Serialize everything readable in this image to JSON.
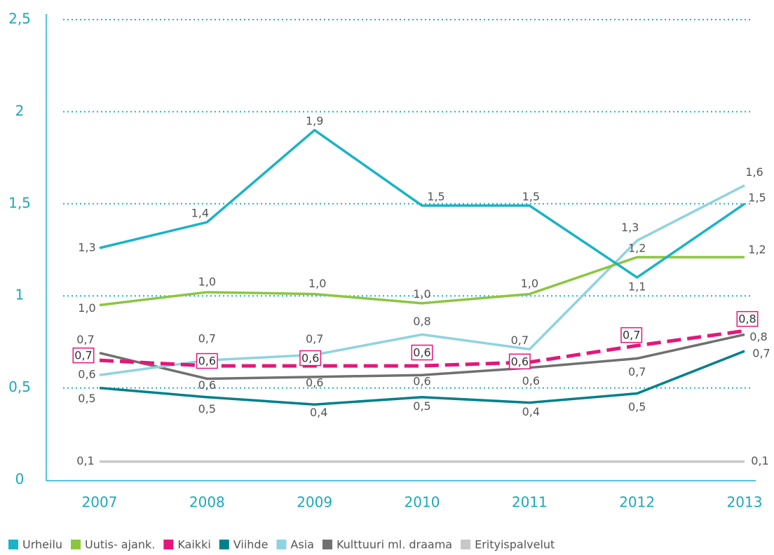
{
  "chart_data": {
    "type": "line",
    "categories": [
      "2007",
      "2008",
      "2009",
      "2010",
      "2011",
      "2012",
      "2013"
    ],
    "ylim": [
      0,
      2.5
    ],
    "yticks": [
      0,
      {
        "value": 0.5,
        "label": "0,5"
      },
      1,
      {
        "value": 1.5,
        "label": "1,5"
      },
      2,
      {
        "value": 2.5,
        "label": "2,5"
      }
    ],
    "grid": true,
    "legend": "bottom",
    "series": [
      {
        "name": "Urheilu",
        "color": "#1ab3c8",
        "values": [
          1.26,
          1.4,
          1.9,
          1.49,
          1.49,
          1.1,
          1.5
        ],
        "value_labels": [
          "1,3",
          "1,4",
          "1,9",
          "1,5",
          "1,5",
          "1,1",
          "1,5"
        ]
      },
      {
        "name": "Uutis- ajank.",
        "color": "#8cc63f",
        "values": [
          0.95,
          1.02,
          1.01,
          0.96,
          1.01,
          1.21,
          1.21
        ],
        "value_labels": [
          "1,0",
          "1,0",
          "1,0",
          "1,0",
          "1,0",
          "1,2",
          "1,2"
        ]
      },
      {
        "name": "Kaikki",
        "color": "#e6157a",
        "dashed": true,
        "values": [
          0.65,
          0.62,
          0.62,
          0.62,
          0.64,
          0.73,
          0.81
        ],
        "value_labels": [
          "0,7",
          "0,6",
          "0,6",
          "0,6",
          "0,6",
          "0,7",
          "0,8"
        ]
      },
      {
        "name": "Viihde",
        "color": "#00808c",
        "values": [
          0.5,
          0.45,
          0.41,
          0.45,
          0.42,
          0.47,
          0.7
        ],
        "value_labels": [
          "0,5",
          "0,5",
          "0,4",
          "0,5",
          "0,4",
          "0,5",
          "0,7"
        ]
      },
      {
        "name": "Asia",
        "color": "#8fd3e0",
        "values": [
          0.57,
          0.65,
          0.68,
          0.79,
          0.71,
          1.3,
          1.6
        ],
        "value_labels": [
          "0,6",
          "0,7",
          "0,7",
          "0,8",
          "0,7",
          "1,3",
          "1,6"
        ]
      },
      {
        "name": "Kulttuuri ml. draama",
        "color": "#707070",
        "values": [
          0.69,
          0.55,
          0.56,
          0.57,
          0.61,
          0.66,
          0.79
        ],
        "value_labels": [
          "0,7",
          "0,6",
          "0,6",
          "0,6",
          "0,6",
          "0,7",
          "0,8"
        ]
      },
      {
        "name": "Erityispalvelut",
        "color": "#c8c8c8",
        "values": [
          0.1,
          0.1,
          0.1,
          0.1,
          0.1,
          0.1,
          0.1
        ],
        "value_labels": [
          "0,1",
          null,
          null,
          null,
          null,
          null,
          "0,1"
        ]
      }
    ]
  }
}
